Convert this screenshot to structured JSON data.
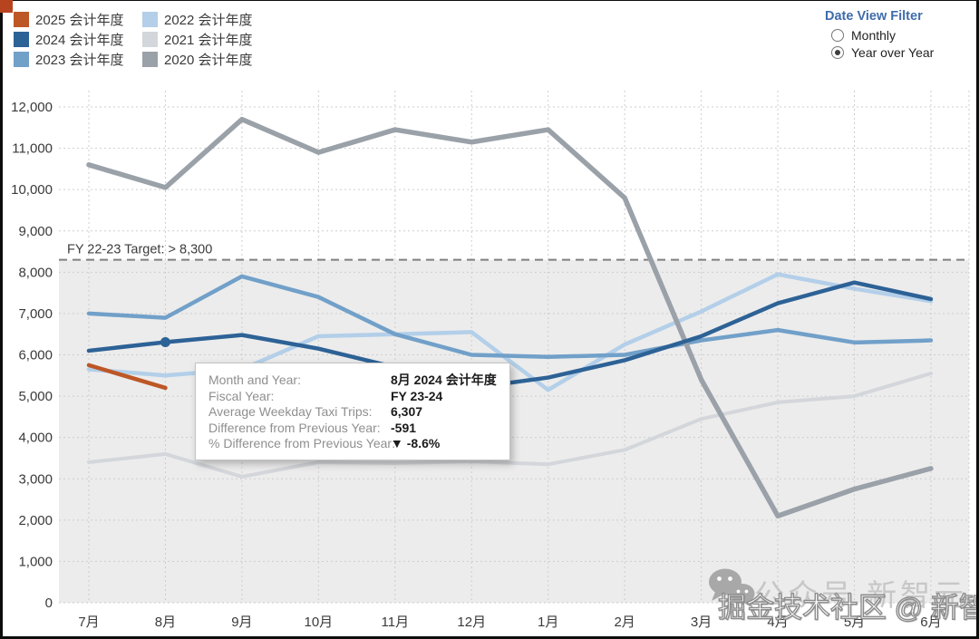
{
  "frame": {
    "corner_color": "#b8431f"
  },
  "legend": {
    "items": [
      {
        "year": "2025",
        "label": "2025 会计年度",
        "color": "#bd5726"
      },
      {
        "year": "2024",
        "label": "2024 会计年度",
        "color": "#2d6296"
      },
      {
        "year": "2023",
        "label": "2023 会计年度",
        "color": "#71a0c9"
      },
      {
        "year": "2022",
        "label": "2022 会计年度",
        "color": "#b3cfe9"
      },
      {
        "year": "2021",
        "label": "2021 会计年度",
        "color": "#d3d6da"
      },
      {
        "year": "2020",
        "label": "2020 会计年度",
        "color": "#9aa1a8"
      }
    ]
  },
  "filter": {
    "title": "Date View Filter",
    "options": [
      {
        "label": "Monthly",
        "selected": false
      },
      {
        "label": "Year over Year",
        "selected": true
      }
    ]
  },
  "tooltip": {
    "rows": [
      {
        "label": "Month and Year:",
        "value": "8月 2024 会计年度"
      },
      {
        "label": "Fiscal Year:",
        "value": "FY 23-24"
      },
      {
        "label": "Average Weekday Taxi Trips:",
        "value": "6,307"
      },
      {
        "label": "Difference from Previous Year:",
        "value": "-591"
      },
      {
        "label": "% Difference from Previous Year:",
        "value": "▼ -8.6%"
      }
    ]
  },
  "watermark": {
    "wechat_label": "公众号 新智元",
    "overlay": "掘金技术社区 @ 新智元"
  },
  "chart_data": {
    "type": "line",
    "title": "",
    "xlabel": "",
    "ylabel": "",
    "categories": [
      "7月",
      "8月",
      "9月",
      "10月",
      "11月",
      "12月",
      "1月",
      "2月",
      "3月",
      "4月",
      "5月",
      "6月"
    ],
    "yticks": [
      0,
      1000,
      2000,
      3000,
      4000,
      5000,
      6000,
      7000,
      8000,
      9000,
      10000,
      11000,
      12000
    ],
    "ylim": [
      0,
      12400
    ],
    "grid": true,
    "shaded_below_target": true,
    "target_line": {
      "label": "FY 22-23 Target: > 8,300",
      "value": 8300
    },
    "marker": {
      "series": "2024 会计年度",
      "month_index": 1,
      "value": 6307
    },
    "draw_order": [
      "2021 会计年度",
      "2022 会计年度",
      "2023 会计年度",
      "2020 会计年度",
      "2024 会计年度",
      "2025 会计年度"
    ],
    "series": [
      {
        "name": "2025 会计年度",
        "color": "#bd5726",
        "width": 4.5,
        "values": [
          5750,
          5200,
          null,
          null,
          null,
          null,
          null,
          null,
          null,
          null,
          null,
          null
        ]
      },
      {
        "name": "2024 会计年度",
        "color": "#2d6296",
        "width": 4.5,
        "values": [
          6100,
          6307,
          6480,
          6150,
          5700,
          5200,
          5450,
          5870,
          6450,
          7250,
          7750,
          7350
        ]
      },
      {
        "name": "2023 会计年度",
        "color": "#71a0c9",
        "width": 4.5,
        "values": [
          7000,
          6898,
          7900,
          7400,
          6500,
          6000,
          5950,
          6000,
          6350,
          6600,
          6300,
          6350
        ]
      },
      {
        "name": "2022 会计年度",
        "color": "#b3cfe9",
        "width": 4.5,
        "values": [
          5650,
          5500,
          5650,
          6450,
          6500,
          6550,
          5150,
          6250,
          7050,
          7950,
          7600,
          7300
        ]
      },
      {
        "name": "2021 会计年度",
        "color": "#d3d6da",
        "width": 4,
        "values": [
          3400,
          3600,
          3050,
          3400,
          3380,
          3420,
          3350,
          3700,
          4450,
          4850,
          5000,
          5550
        ]
      },
      {
        "name": "2020 会计年度",
        "color": "#9aa1a8",
        "width": 5.5,
        "values": [
          10600,
          10050,
          11700,
          10900,
          11450,
          11150,
          11450,
          9800,
          5400,
          2100,
          2750,
          3250
        ]
      }
    ]
  }
}
